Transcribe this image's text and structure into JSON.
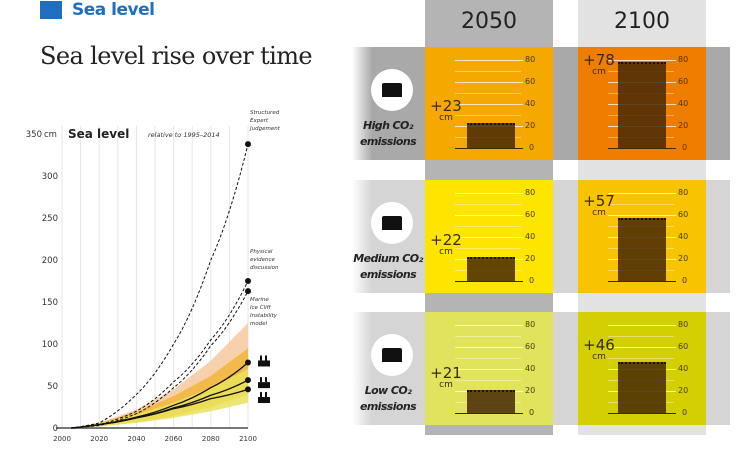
{
  "header": {
    "brand": "Sea level",
    "title": "Sea level rise over time"
  },
  "chart_data": {
    "type": "line",
    "title": "Sea level",
    "subtitle": "relative to 1995–2014",
    "yunit": "cm",
    "ylim": [
      0,
      350
    ],
    "xlim": [
      2000,
      2100
    ],
    "yticks": [
      "0",
      "50",
      "100",
      "150",
      "200",
      "250",
      "300",
      "350"
    ],
    "xticks": [
      "2000",
      "2020",
      "2040",
      "2060",
      "2080",
      "2100"
    ],
    "grid": true,
    "x": [
      2005,
      2020,
      2040,
      2060,
      2080,
      2100
    ],
    "series": [
      {
        "style": "solid",
        "values": [
          0,
          4,
          13,
          27,
          48,
          78
        ]
      },
      {
        "style": "solid",
        "values": [
          0,
          4,
          12,
          24,
          39,
          57
        ]
      },
      {
        "style": "solid",
        "values": [
          0,
          4,
          12,
          23,
          35,
          46
        ]
      },
      {
        "name": "Structured Expert Judgement",
        "style": "dashed",
        "values": [
          0,
          6,
          40,
          100,
          200,
          338
        ]
      },
      {
        "name": "Physical evidence discussion",
        "style": "dashed",
        "values": [
          0,
          4,
          20,
          55,
          105,
          175
        ]
      },
      {
        "name": "Marine Ice Cliff Instability model",
        "style": "dashed",
        "values": [
          0,
          3,
          17,
          48,
          98,
          163
        ]
      }
    ],
    "ranges": [
      {
        "color": "#f6c9a0",
        "lower": [
          0,
          2,
          7,
          15,
          28,
          50
        ],
        "upper": [
          0,
          6,
          22,
          46,
          80,
          125
        ]
      },
      {
        "color": "#f3b53a",
        "lower": [
          0,
          2,
          7,
          14,
          25,
          40
        ],
        "upper": [
          0,
          6,
          19,
          38,
          62,
          95
        ]
      },
      {
        "color": "#e9e35a",
        "lower": [
          0,
          2,
          6,
          12,
          20,
          30
        ],
        "upper": [
          0,
          5,
          16,
          30,
          48,
          70
        ]
      }
    ]
  },
  "panel": {
    "years": [
      "2050",
      "2100"
    ],
    "axis_ticks": [
      "0",
      "20",
      "40",
      "60",
      "80"
    ],
    "unit": "cm",
    "rows": [
      {
        "label1": "High CO₂",
        "label2": "emissions",
        "icon": "factory-icon",
        "values": [
          23,
          78
        ],
        "labels": [
          "+23",
          "+78"
        ],
        "colors": [
          "#f5a800",
          "#ee7d00"
        ]
      },
      {
        "label1": "Medium CO₂",
        "label2": "emissions",
        "icon": "factory-wind-icon",
        "values": [
          22,
          57
        ],
        "labels": [
          "+22",
          "+57"
        ],
        "colors": [
          "#fde500",
          "#f8c300"
        ]
      },
      {
        "label1": "Low CO₂",
        "label2": "emissions",
        "icon": "solar-wind-icon",
        "values": [
          21,
          46
        ],
        "labels": [
          "+21",
          "+46"
        ],
        "colors": [
          "#e2e35c",
          "#d3cf00"
        ]
      }
    ]
  }
}
